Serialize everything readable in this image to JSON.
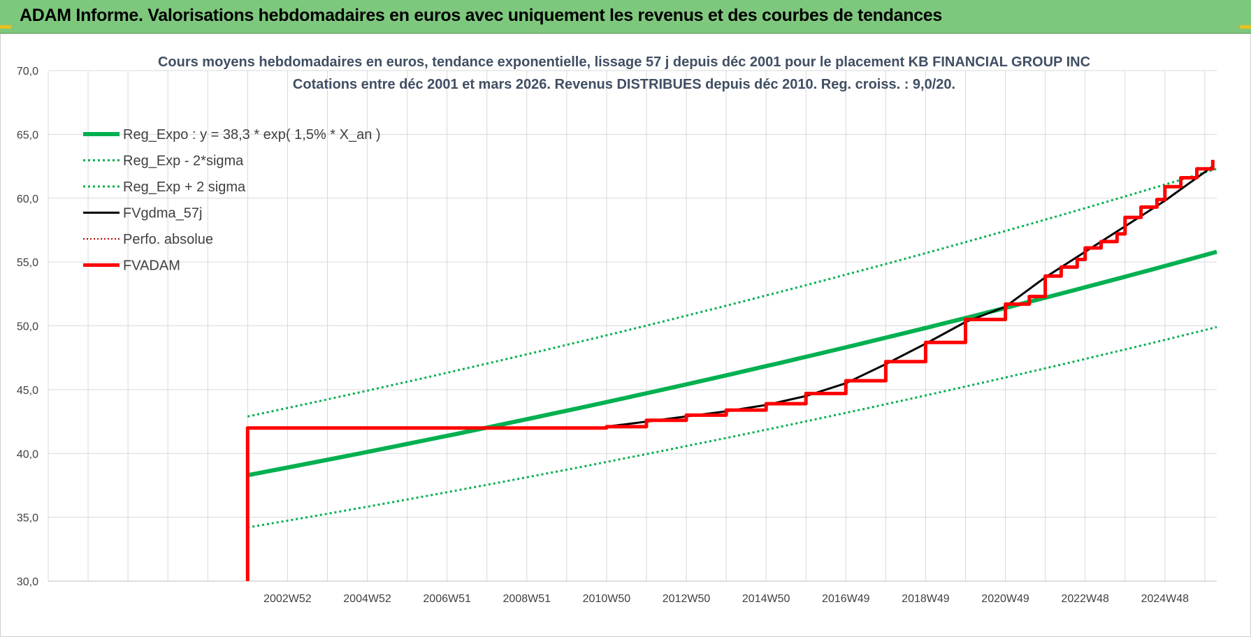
{
  "header": {
    "title": "ADAM Informe. Valorisations hebdomadaires en euros avec uniquement les revenus et des courbes de tendances"
  },
  "colors": {
    "banner": "#7ec87e",
    "green": "#00b050",
    "red": "#ff0000",
    "black": "#000000",
    "darkred": "#c00000",
    "grid": "#d9d9d9"
  },
  "chart_data": {
    "type": "line",
    "title_line1": "Cours moyens hebdomadaires en euros, tendance exponentielle, lissage 57 j depuis déc 2001 pour le placement KB FINANCIAL GROUP INC",
    "title_line2": "Cotations entre déc 2001 et mars 2026.  Revenus DISTRIBUES depuis déc 2010. Reg. croiss. : 9,0/20.",
    "xlabel": "",
    "ylabel": "",
    "ylim": [
      30,
      70
    ],
    "xlim": [
      1997.0,
      2026.3
    ],
    "yticks": [
      "30,0",
      "35,0",
      "40,0",
      "45,0",
      "50,0",
      "55,0",
      "60,0",
      "65,0",
      "70,0"
    ],
    "xtick_labels": [
      {
        "label": "2002W52",
        "x": 2003.0
      },
      {
        "label": "2004W52",
        "x": 2005.0
      },
      {
        "label": "2006W51",
        "x": 2007.0
      },
      {
        "label": "2008W51",
        "x": 2009.0
      },
      {
        "label": "2010W50",
        "x": 2011.0
      },
      {
        "label": "2012W50",
        "x": 2013.0
      },
      {
        "label": "2014W50",
        "x": 2015.0
      },
      {
        "label": "2016W49",
        "x": 2017.0
      },
      {
        "label": "2018W49",
        "x": 2019.0
      },
      {
        "label": "2020W49",
        "x": 2021.0
      },
      {
        "label": "2022W48",
        "x": 2023.0
      },
      {
        "label": "2024W48",
        "x": 2025.0
      }
    ],
    "grid": true,
    "legend_position": "top-left",
    "series": [
      {
        "name": "Reg_Expo : y = 38,3 * exp( 1,5% *  X_an )",
        "style": "solid-thick",
        "color": "#00b050",
        "x": [
          2002.0,
          2026.3
        ],
        "y": [
          38.3,
          55.8
        ]
      },
      {
        "name": "Reg_Exp - 2*sigma",
        "style": "dotted",
        "color": "#00b050",
        "x": [
          2002.0,
          2026.3
        ],
        "y": [
          34.2,
          49.9
        ]
      },
      {
        "name": "Reg_Exp + 2 sigma",
        "style": "dotted",
        "color": "#00b050",
        "x": [
          2002.0,
          2026.3
        ],
        "y": [
          42.9,
          62.3
        ]
      },
      {
        "name": "FVgdma_57j",
        "style": "solid-thin",
        "color": "#000000",
        "x": [
          2011.0,
          2012.0,
          2013.0,
          2014.0,
          2015.0,
          2016.0,
          2017.0,
          2018.0,
          2019.0,
          2020.0,
          2021.0,
          2022.0,
          2023.0,
          2024.0,
          2025.0,
          2026.2
        ],
        "y": [
          42.1,
          42.5,
          42.9,
          43.3,
          43.8,
          44.5,
          45.5,
          47.0,
          48.6,
          50.3,
          51.5,
          53.8,
          55.8,
          57.8,
          59.8,
          62.5
        ]
      },
      {
        "name": "Perfo. absolue",
        "style": "dotted-thin",
        "color": "#c00000",
        "x": [],
        "y": []
      },
      {
        "name": "FVADAM",
        "style": "step-thick",
        "color": "#ff0000",
        "x": [
          2002.0,
          2002.0,
          2011.0,
          2012.0,
          2013.0,
          2014.0,
          2015.0,
          2016.0,
          2017.0,
          2018.0,
          2019.0,
          2020.0,
          2021.0,
          2021.6,
          2022.0,
          2022.4,
          2022.8,
          2023.0,
          2023.4,
          2023.8,
          2024.0,
          2024.4,
          2024.8,
          2025.0,
          2025.4,
          2025.8,
          2026.2
        ],
        "y": [
          30.0,
          42.0,
          42.1,
          42.6,
          43.0,
          43.4,
          43.9,
          44.7,
          45.7,
          47.2,
          48.7,
          50.5,
          51.7,
          52.3,
          53.9,
          54.6,
          55.2,
          56.1,
          56.6,
          57.2,
          58.5,
          59.3,
          59.9,
          60.9,
          61.6,
          62.3,
          63.0
        ]
      }
    ]
  }
}
